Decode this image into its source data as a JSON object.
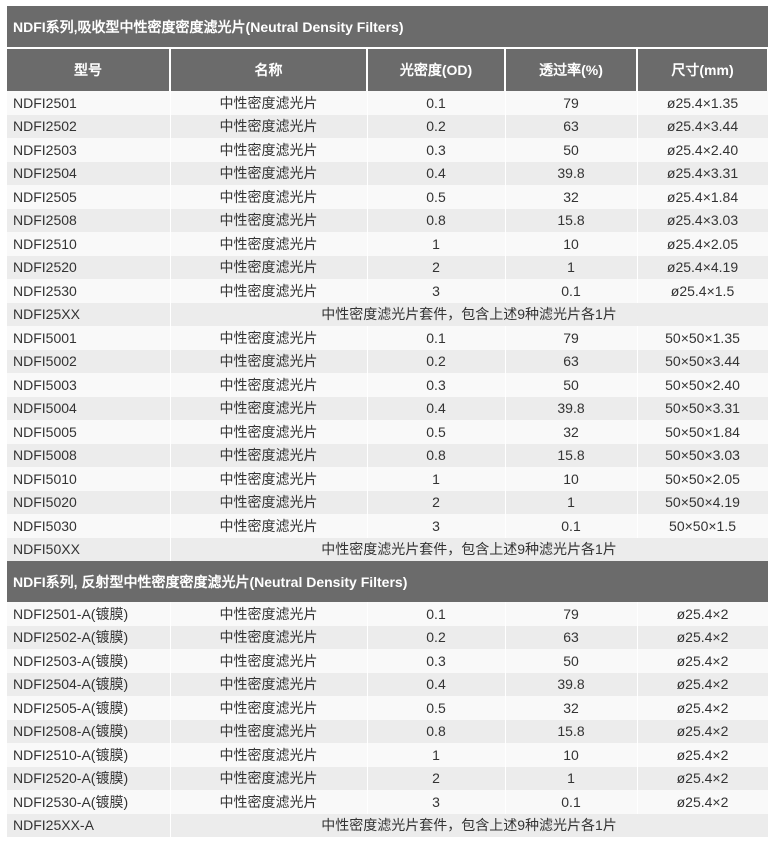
{
  "colors": {
    "header_bg": "#6b6b6b",
    "row_alt": "#ececec"
  },
  "section1": {
    "title": "NDFI系列,吸收型中性密度密度滤光片(Neutral Density Filters)",
    "headers": [
      "型号",
      "名称",
      "光密度(OD)",
      "透过率(%)",
      "尺寸(mm)"
    ],
    "rows": [
      [
        "NDFI2501",
        "中性密度滤光片",
        "0.1",
        "79",
        "ø25.4×1.35"
      ],
      [
        "NDFI2502",
        "中性密度滤光片",
        "0.2",
        "63",
        "ø25.4×3.44"
      ],
      [
        "NDFI2503",
        "中性密度滤光片",
        "0.3",
        "50",
        "ø25.4×2.40"
      ],
      [
        "NDFI2504",
        "中性密度滤光片",
        "0.4",
        "39.8",
        "ø25.4×3.31"
      ],
      [
        "NDFI2505",
        "中性密度滤光片",
        "0.5",
        "32",
        "ø25.4×1.84"
      ],
      [
        "NDFI2508",
        "中性密度滤光片",
        "0.8",
        "15.8",
        "ø25.4×3.03"
      ],
      [
        "NDFI2510",
        "中性密度滤光片",
        "1",
        "10",
        "ø25.4×2.05"
      ],
      [
        "NDFI2520",
        "中性密度滤光片",
        "2",
        "1",
        "ø25.4×4.19"
      ],
      [
        "NDFI2530",
        "中性密度滤光片",
        "3",
        "0.1",
        "ø25.4×1.5"
      ],
      [
        "NDFI25XX",
        "中性密度滤光片套件，包含上述9种滤光片各1片"
      ],
      [
        "NDFI5001",
        "中性密度滤光片",
        "0.1",
        "79",
        "50×50×1.35"
      ],
      [
        "NDFI5002",
        "中性密度滤光片",
        "0.2",
        "63",
        "50×50×3.44"
      ],
      [
        "NDFI5003",
        "中性密度滤光片",
        "0.3",
        "50",
        "50×50×2.40"
      ],
      [
        "NDFI5004",
        "中性密度滤光片",
        "0.4",
        "39.8",
        "50×50×3.31"
      ],
      [
        "NDFI5005",
        "中性密度滤光片",
        "0.5",
        "32",
        "50×50×1.84"
      ],
      [
        "NDFI5008",
        "中性密度滤光片",
        "0.8",
        "15.8",
        "50×50×3.03"
      ],
      [
        "NDFI5010",
        "中性密度滤光片",
        "1",
        "10",
        "50×50×2.05"
      ],
      [
        "NDFI5020",
        "中性密度滤光片",
        "2",
        "1",
        "50×50×4.19"
      ],
      [
        "NDFI5030",
        "中性密度滤光片",
        "3",
        "0.1",
        "50×50×1.5"
      ],
      [
        "NDFI50XX",
        "中性密度滤光片套件，包含上述9种滤光片各1片"
      ]
    ]
  },
  "section2": {
    "title": "NDFI系列, 反射型中性密度密度滤光片(Neutral Density Filters)",
    "rows": [
      [
        "NDFI2501-A(镀膜)",
        "中性密度滤光片",
        "0.1",
        "79",
        "ø25.4×2"
      ],
      [
        "NDFI2502-A(镀膜)",
        "中性密度滤光片",
        "0.2",
        "63",
        "ø25.4×2"
      ],
      [
        "NDFI2503-A(镀膜)",
        "中性密度滤光片",
        "0.3",
        "50",
        "ø25.4×2"
      ],
      [
        "NDFI2504-A(镀膜)",
        "中性密度滤光片",
        "0.4",
        "39.8",
        "ø25.4×2"
      ],
      [
        "NDFI2505-A(镀膜)",
        "中性密度滤光片",
        "0.5",
        "32",
        "ø25.4×2"
      ],
      [
        "NDFI2508-A(镀膜)",
        "中性密度滤光片",
        "0.8",
        "15.8",
        "ø25.4×2"
      ],
      [
        "NDFI2510-A(镀膜)",
        "中性密度滤光片",
        "1",
        "10",
        "ø25.4×2"
      ],
      [
        "NDFI2520-A(镀膜)",
        "中性密度滤光片",
        "2",
        "1",
        "ø25.4×2"
      ],
      [
        "NDFI2530-A(镀膜)",
        "中性密度滤光片",
        "3",
        "0.1",
        "ø25.4×2"
      ],
      [
        "NDFI25XX-A",
        "中性密度滤光片套件，包含上述9种滤光片各1片"
      ]
    ]
  }
}
